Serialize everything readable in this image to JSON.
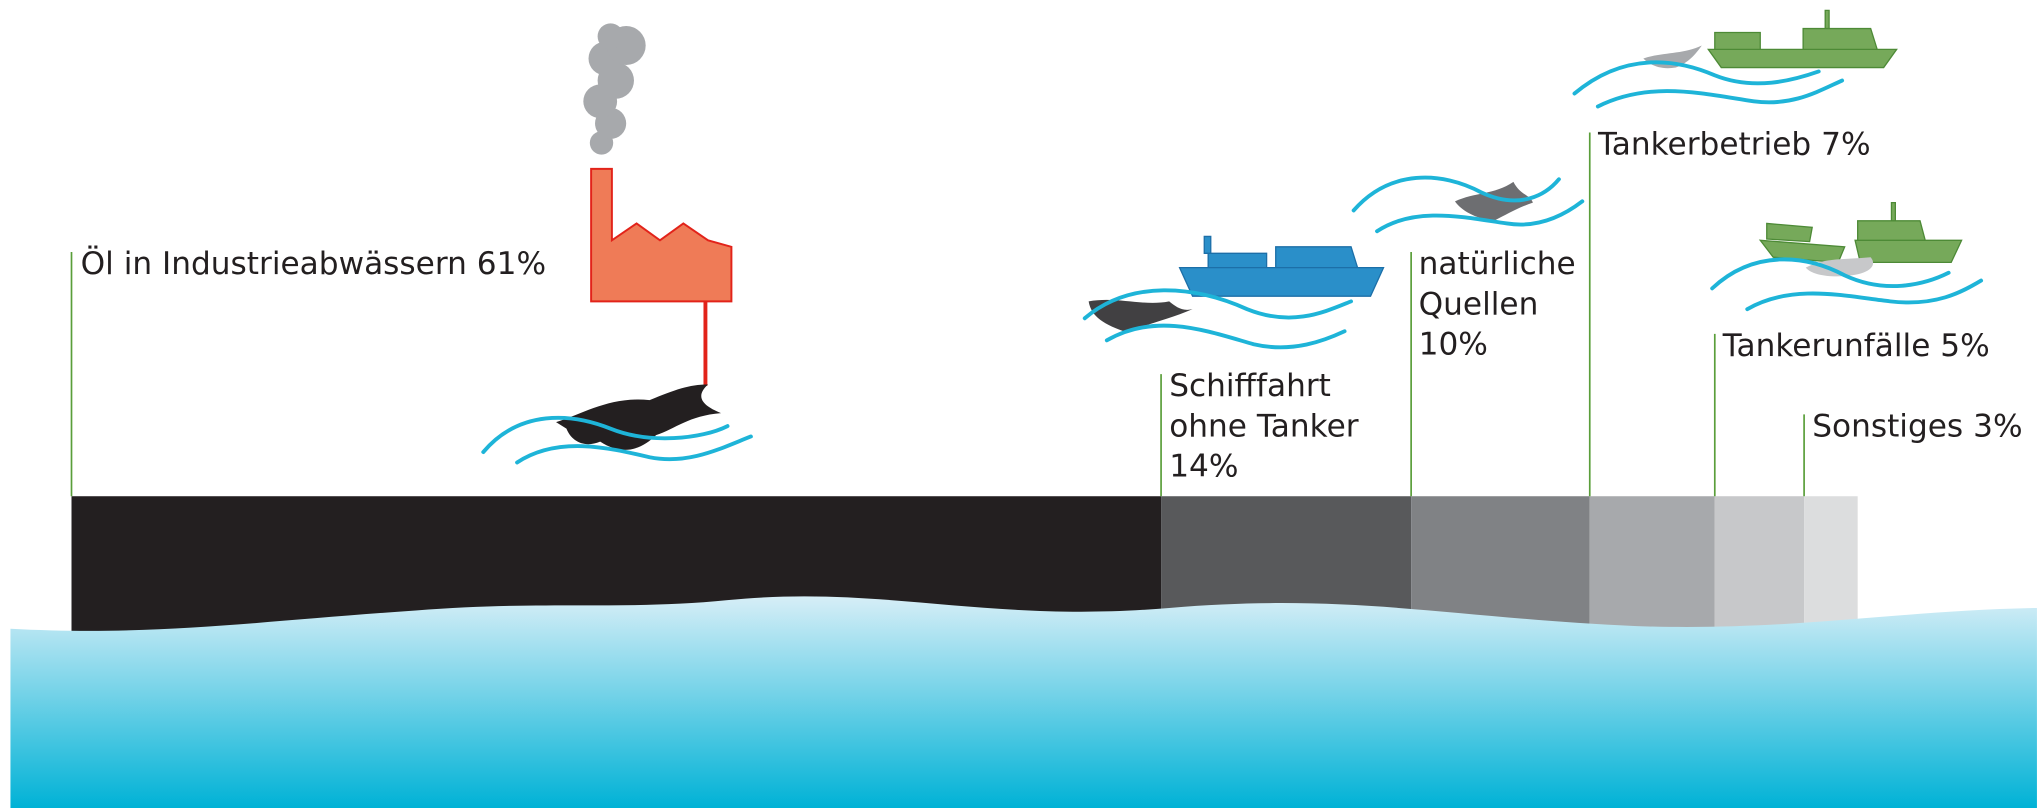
{
  "chart_data": {
    "type": "proportion-bar",
    "categories": [
      "Öl in Industrieabwässern",
      "Schifffahrt ohne Tanker",
      "natürliche Quellen",
      "Tankerbetrieb",
      "Tankerunfälle",
      "Sonstiges"
    ],
    "values": [
      61,
      14,
      10,
      7,
      5,
      3
    ],
    "value_labels": [
      "61%",
      "14%",
      "10%",
      "7%",
      "5%",
      "3%"
    ],
    "colors": [
      "#231f20",
      "#58595b",
      "#808285",
      "#a7a9ac",
      "#c7c8ca",
      "#dcddde"
    ],
    "leader_color": "#5a9e3a"
  }
}
